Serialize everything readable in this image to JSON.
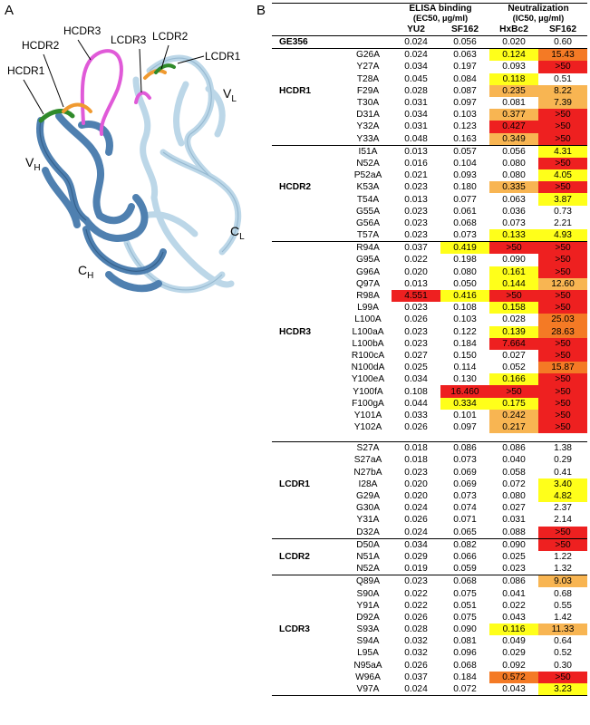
{
  "panel_a": {
    "letter": "A",
    "labels": {
      "hcdr1": "HCDR1",
      "hcdr2": "HCDR2",
      "hcdr3": "HCDR3",
      "lcdr3": "LCDR3",
      "lcdr2": "LCDR2",
      "lcdr1": "LCDR1",
      "vh": "V",
      "vh_sub": "H",
      "vl": "V",
      "vl_sub": "L",
      "ch": "C",
      "ch_sub": "H",
      "cl": "C",
      "cl_sub": "L"
    },
    "colors": {
      "heavy": "#4f80b0",
      "light": "#bcd7e8",
      "hcdr3": "#e05ad8",
      "cdr_green": "#2f8a2a",
      "cdr_orange": "#f09a30"
    }
  },
  "panel_b": {
    "letter": "B",
    "headers": {
      "elisa": "ELISA binding",
      "elisa_unit": "(EC50, µg/ml)",
      "neut": "Neutralization",
      "neut_unit": "(IC50, µg/ml)",
      "yu2": "YU2",
      "sf162a": "SF162",
      "hxbc2": "HxBc2",
      "sf162b": "SF162"
    },
    "reference": {
      "name": "GE356",
      "yu2": "0.024",
      "sf162_elisa": "0.056",
      "hxbc2": "0.020",
      "sf162_neut": "0.60"
    },
    "legend_colors": {
      "yellow": "#ffff1a",
      "light_orange": "#f8b552",
      "orange": "#f47a25",
      "red": "#ee2020"
    },
    "groups": [
      {
        "region": "HCDR1",
        "rows": [
          [
            "G26A",
            "0.024",
            "",
            "0.063",
            "",
            "0.124",
            "y",
            "15.43",
            "o"
          ],
          [
            "Y27A",
            "0.034",
            "",
            "0.197",
            "",
            "0.093",
            "",
            ">50",
            "r"
          ],
          [
            "T28A",
            "0.045",
            "",
            "0.084",
            "",
            "0.118",
            "y",
            "0.51",
            ""
          ],
          [
            "F29A",
            "0.028",
            "",
            "0.087",
            "",
            "0.235",
            "lo",
            "8.22",
            "lo"
          ],
          [
            "T30A",
            "0.031",
            "",
            "0.097",
            "",
            "0.081",
            "",
            "7.39",
            "lo"
          ],
          [
            "D31A",
            "0.034",
            "",
            "0.103",
            "",
            "0.377",
            "lo",
            ">50",
            "r"
          ],
          [
            "Y32A",
            "0.031",
            "",
            "0.123",
            "",
            "0.427",
            "r",
            ">50",
            "r"
          ],
          [
            "Y33A",
            "0.048",
            "",
            "0.163",
            "",
            "0.349",
            "lo",
            ">50",
            "r"
          ]
        ]
      },
      {
        "region": "HCDR2",
        "rows": [
          [
            "I51A",
            "0.013",
            "",
            "0.057",
            "",
            "0.056",
            "",
            "4.31",
            "y"
          ],
          [
            "N52A",
            "0.016",
            "",
            "0.104",
            "",
            "0.080",
            "",
            ">50",
            "r"
          ],
          [
            "P52aA",
            "0.021",
            "",
            "0.093",
            "",
            "0.080",
            "",
            "4.05",
            "y"
          ],
          [
            "K53A",
            "0.023",
            "",
            "0.180",
            "",
            "0.335",
            "lo",
            ">50",
            "r"
          ],
          [
            "T54A",
            "0.013",
            "",
            "0.077",
            "",
            "0.063",
            "",
            "3.87",
            "y"
          ],
          [
            "G55A",
            "0.023",
            "",
            "0.061",
            "",
            "0.036",
            "",
            "0.73",
            ""
          ],
          [
            "G56A",
            "0.023",
            "",
            "0.068",
            "",
            "0.073",
            "",
            "2.21",
            ""
          ],
          [
            "T57A",
            "0.023",
            "",
            "0.073",
            "",
            "0.133",
            "y",
            "4.93",
            "y"
          ]
        ]
      },
      {
        "region": "HCDR3",
        "rows": [
          [
            "R94A",
            "0.037",
            "",
            "0.419",
            "y",
            ">50",
            "r",
            ">50",
            "r"
          ],
          [
            "G95A",
            "0.022",
            "",
            "0.198",
            "",
            "0.090",
            "",
            ">50",
            "r"
          ],
          [
            "G96A",
            "0.020",
            "",
            "0.080",
            "",
            "0.161",
            "y",
            ">50",
            "r"
          ],
          [
            "Q97A",
            "0.013",
            "",
            "0.050",
            "",
            "0.144",
            "y",
            "12.60",
            "lo"
          ],
          [
            "R98A",
            "4.551",
            "r",
            "0.416",
            "y",
            ">50",
            "r",
            ">50",
            "r"
          ],
          [
            "L99A",
            "0.023",
            "",
            "0.108",
            "",
            "0.158",
            "y",
            ">50",
            "r"
          ],
          [
            "L100A",
            "0.026",
            "",
            "0.103",
            "",
            "0.028",
            "",
            "25.03",
            "o"
          ],
          [
            "L100aA",
            "0.023",
            "",
            "0.122",
            "",
            "0.139",
            "y",
            "28.63",
            "o"
          ],
          [
            "L100bA",
            "0.023",
            "",
            "0.184",
            "",
            "7.664",
            "r",
            ">50",
            "r"
          ],
          [
            "R100cA",
            "0.027",
            "",
            "0.150",
            "",
            "0.027",
            "",
            ">50",
            "r"
          ],
          [
            "N100dA",
            "0.025",
            "",
            "0.114",
            "",
            "0.052",
            "",
            "15.87",
            "o"
          ],
          [
            "Y100eA",
            "0.034",
            "",
            "0.130",
            "",
            "0.166",
            "y",
            ">50",
            "r"
          ],
          [
            "Y100fA",
            "0.108",
            "",
            "16.460",
            "r",
            ">50",
            "r",
            ">50",
            "r"
          ],
          [
            "F100gA",
            "0.044",
            "",
            "0.334",
            "y",
            "0.175",
            "y",
            ">50",
            "r"
          ],
          [
            "Y101A",
            "0.033",
            "",
            "0.101",
            "",
            "0.242",
            "lo",
            ">50",
            "r"
          ],
          [
            "Y102A",
            "0.026",
            "",
            "0.097",
            "",
            "0.217",
            "lo",
            ">50",
            "r"
          ]
        ]
      },
      {
        "region": "LCDR1",
        "rows": [
          [
            "S27A",
            "0.018",
            "",
            "0.086",
            "",
            "0.086",
            "",
            "1.38",
            ""
          ],
          [
            "S27aA",
            "0.018",
            "",
            "0.073",
            "",
            "0.040",
            "",
            "0.29",
            ""
          ],
          [
            "N27bA",
            "0.023",
            "",
            "0.069",
            "",
            "0.058",
            "",
            "0.41",
            ""
          ],
          [
            "I28A",
            "0.020",
            "",
            "0.069",
            "",
            "0.072",
            "",
            "3.40",
            "y"
          ],
          [
            "G29A",
            "0.020",
            "",
            "0.073",
            "",
            "0.080",
            "",
            "4.82",
            "y"
          ],
          [
            "G30A",
            "0.024",
            "",
            "0.074",
            "",
            "0.027",
            "",
            "2.37",
            ""
          ],
          [
            "Y31A",
            "0.026",
            "",
            "0.071",
            "",
            "0.031",
            "",
            "2.14",
            ""
          ],
          [
            "D32A",
            "0.024",
            "",
            "0.065",
            "",
            "0.088",
            "",
            ">50",
            "r"
          ]
        ]
      },
      {
        "region": "LCDR2",
        "rows": [
          [
            "D50A",
            "0.034",
            "",
            "0.082",
            "",
            "0.090",
            "",
            ">50",
            "r"
          ],
          [
            "N51A",
            "0.029",
            "",
            "0.066",
            "",
            "0.025",
            "",
            "1.22",
            ""
          ],
          [
            "N52A",
            "0.019",
            "",
            "0.059",
            "",
            "0.023",
            "",
            "1.32",
            ""
          ]
        ]
      },
      {
        "region": "LCDR3",
        "rows": [
          [
            "Q89A",
            "0.023",
            "",
            "0.068",
            "",
            "0.086",
            "",
            "9.03",
            "lo"
          ],
          [
            "S90A",
            "0.022",
            "",
            "0.075",
            "",
            "0.041",
            "",
            "0.68",
            ""
          ],
          [
            "Y91A",
            "0.022",
            "",
            "0.051",
            "",
            "0.022",
            "",
            "0.55",
            ""
          ],
          [
            "D92A",
            "0.026",
            "",
            "0.075",
            "",
            "0.043",
            "",
            "1.42",
            ""
          ],
          [
            "S93A",
            "0.028",
            "",
            "0.090",
            "",
            "0.116",
            "y",
            "11.33",
            "lo"
          ],
          [
            "S94A",
            "0.032",
            "",
            "0.081",
            "",
            "0.049",
            "",
            "0.64",
            ""
          ],
          [
            "L95A",
            "0.032",
            "",
            "0.096",
            "",
            "0.029",
            "",
            "0.52",
            ""
          ],
          [
            "N95aA",
            "0.026",
            "",
            "0.068",
            "",
            "0.092",
            "",
            "0.30",
            ""
          ],
          [
            "W96A",
            "0.037",
            "",
            "0.184",
            "",
            "0.572",
            "o",
            ">50",
            "r"
          ],
          [
            "V97A",
            "0.024",
            "",
            "0.072",
            "",
            "0.043",
            "",
            "3.23",
            "y"
          ]
        ]
      }
    ]
  }
}
